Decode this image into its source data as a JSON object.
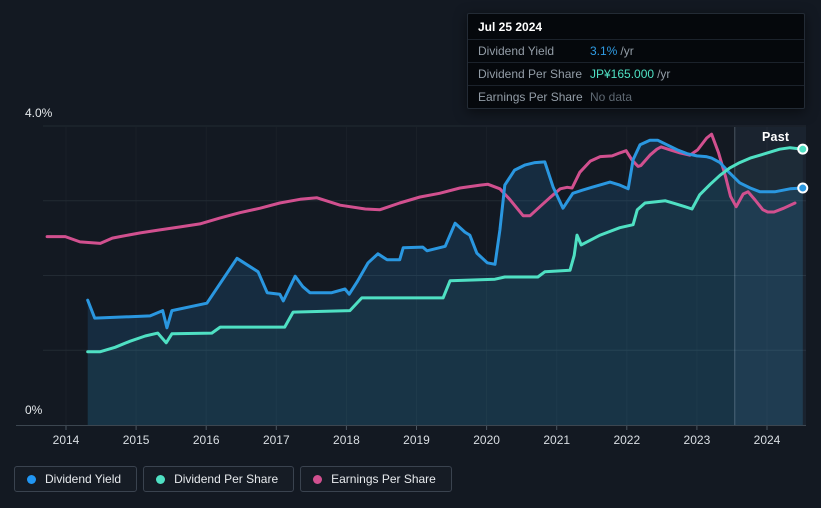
{
  "tooltip": {
    "date": "Jul 25 2024",
    "rows": [
      {
        "label": "Dividend Yield",
        "value": "3.1%",
        "suffix": "/yr",
        "color": "#2f9ce4"
      },
      {
        "label": "Dividend Per Share",
        "value": "JP¥165.000",
        "suffix": "/yr",
        "color": "#4fe0c3"
      },
      {
        "label": "Earnings Per Share",
        "value": "No data",
        "suffix": "",
        "color": "#5e6872"
      }
    ]
  },
  "chart": {
    "past_label": "Past",
    "y_axis": {
      "top_label": "4.0%",
      "bottom_label": "0%"
    }
  },
  "legend": {
    "items": [
      {
        "label": "Dividend Yield",
        "color": "#2196f3"
      },
      {
        "label": "Dividend Per Share",
        "color": "#4fe0c3"
      },
      {
        "label": "Earnings Per Share",
        "color": "#d1508f"
      }
    ]
  },
  "chart_data": {
    "type": "line",
    "title": "Dividend history",
    "ylabel": "%",
    "ylim": [
      0,
      4.0
    ],
    "y_gridlines_pct": [
      1,
      2,
      3,
      4
    ],
    "x_ticks": [
      2014,
      2015,
      2016,
      2017,
      2018,
      2019,
      2020,
      2021,
      2022,
      2023,
      2024
    ],
    "past_start": 2023.54,
    "legend_position": "bottom-left",
    "note": "values are in % of the left axis; Dividend Per Share ends at JP¥165.000/yr, Dividend Yield at 3.1%/yr (Jul 25 2024)",
    "series": [
      {
        "name": "Dividend Yield",
        "color": "#2a97e0",
        "area_alpha": 0.16,
        "end_dot": true,
        "points": [
          [
            2014.31,
            1.67
          ],
          [
            2014.41,
            1.43
          ],
          [
            2015.2,
            1.46
          ],
          [
            2015.38,
            1.53
          ],
          [
            2015.44,
            1.3
          ],
          [
            2015.51,
            1.53
          ],
          [
            2016.01,
            1.63
          ],
          [
            2016.44,
            2.23
          ],
          [
            2016.74,
            2.05
          ],
          [
            2016.87,
            1.77
          ],
          [
            2017.05,
            1.75
          ],
          [
            2017.1,
            1.66
          ],
          [
            2017.27,
            1.99
          ],
          [
            2017.38,
            1.85
          ],
          [
            2017.48,
            1.77
          ],
          [
            2017.79,
            1.77
          ],
          [
            2017.98,
            1.82
          ],
          [
            2018.04,
            1.75
          ],
          [
            2018.15,
            1.91
          ],
          [
            2018.31,
            2.17
          ],
          [
            2018.45,
            2.29
          ],
          [
            2018.58,
            2.21
          ],
          [
            2018.76,
            2.21
          ],
          [
            2018.81,
            2.37
          ],
          [
            2019.09,
            2.38
          ],
          [
            2019.15,
            2.33
          ],
          [
            2019.41,
            2.39
          ],
          [
            2019.55,
            2.7
          ],
          [
            2019.69,
            2.58
          ],
          [
            2019.76,
            2.54
          ],
          [
            2019.86,
            2.3
          ],
          [
            2020.01,
            2.17
          ],
          [
            2020.12,
            2.15
          ],
          [
            2020.19,
            2.61
          ],
          [
            2020.26,
            3.21
          ],
          [
            2020.4,
            3.41
          ],
          [
            2020.55,
            3.48
          ],
          [
            2020.69,
            3.51
          ],
          [
            2020.83,
            3.52
          ],
          [
            2020.95,
            3.18
          ],
          [
            2021.09,
            2.9
          ],
          [
            2021.23,
            3.1
          ],
          [
            2021.36,
            3.14
          ],
          [
            2021.5,
            3.18
          ],
          [
            2021.65,
            3.22
          ],
          [
            2021.76,
            3.25
          ],
          [
            2021.9,
            3.21
          ],
          [
            2022.02,
            3.16
          ],
          [
            2022.09,
            3.55
          ],
          [
            2022.19,
            3.75
          ],
          [
            2022.33,
            3.81
          ],
          [
            2022.44,
            3.81
          ],
          [
            2022.57,
            3.75
          ],
          [
            2022.72,
            3.68
          ],
          [
            2022.86,
            3.63
          ],
          [
            2023.0,
            3.6
          ],
          [
            2023.13,
            3.59
          ],
          [
            2023.21,
            3.57
          ],
          [
            2023.33,
            3.51
          ],
          [
            2023.47,
            3.37
          ],
          [
            2023.61,
            3.24
          ],
          [
            2023.76,
            3.17
          ],
          [
            2023.9,
            3.12
          ],
          [
            2024.11,
            3.12
          ],
          [
            2024.33,
            3.16
          ],
          [
            2024.51,
            3.17
          ]
        ]
      },
      {
        "name": "Dividend Per Share",
        "color": "#4fe0c3",
        "area_alpha": 0.05,
        "end_dot": true,
        "points": [
          [
            2014.31,
            0.98
          ],
          [
            2014.49,
            0.98
          ],
          [
            2014.7,
            1.04
          ],
          [
            2014.91,
            1.12
          ],
          [
            2015.13,
            1.19
          ],
          [
            2015.31,
            1.23
          ],
          [
            2015.43,
            1.1
          ],
          [
            2015.51,
            1.22
          ],
          [
            2016.08,
            1.23
          ],
          [
            2016.2,
            1.31
          ],
          [
            2017.12,
            1.31
          ],
          [
            2017.24,
            1.51
          ],
          [
            2018.05,
            1.53
          ],
          [
            2018.22,
            1.7
          ],
          [
            2019.38,
            1.7
          ],
          [
            2019.48,
            1.93
          ],
          [
            2020.12,
            1.95
          ],
          [
            2020.26,
            1.98
          ],
          [
            2020.73,
            1.98
          ],
          [
            2020.83,
            2.05
          ],
          [
            2021.19,
            2.07
          ],
          [
            2021.25,
            2.27
          ],
          [
            2021.29,
            2.54
          ],
          [
            2021.35,
            2.41
          ],
          [
            2021.62,
            2.54
          ],
          [
            2021.9,
            2.64
          ],
          [
            2022.09,
            2.68
          ],
          [
            2022.15,
            2.88
          ],
          [
            2022.26,
            2.97
          ],
          [
            2022.55,
            3.0
          ],
          [
            2022.69,
            2.96
          ],
          [
            2022.83,
            2.92
          ],
          [
            2022.93,
            2.89
          ],
          [
            2023.04,
            3.08
          ],
          [
            2023.19,
            3.22
          ],
          [
            2023.33,
            3.34
          ],
          [
            2023.47,
            3.44
          ],
          [
            2023.61,
            3.51
          ],
          [
            2023.76,
            3.57
          ],
          [
            2023.9,
            3.61
          ],
          [
            2024.04,
            3.65
          ],
          [
            2024.18,
            3.69
          ],
          [
            2024.33,
            3.71
          ],
          [
            2024.51,
            3.69
          ]
        ]
      },
      {
        "name": "Earnings Per Share",
        "color": "#d1508f",
        "area_alpha": 0,
        "end_dot": false,
        "points": [
          [
            2013.73,
            2.52
          ],
          [
            2013.99,
            2.52
          ],
          [
            2014.2,
            2.45
          ],
          [
            2014.49,
            2.43
          ],
          [
            2014.66,
            2.5
          ],
          [
            2014.77,
            2.52
          ],
          [
            2015.06,
            2.57
          ],
          [
            2015.34,
            2.61
          ],
          [
            2015.63,
            2.65
          ],
          [
            2015.91,
            2.69
          ],
          [
            2016.2,
            2.77
          ],
          [
            2016.48,
            2.84
          ],
          [
            2016.77,
            2.9
          ],
          [
            2017.05,
            2.97
          ],
          [
            2017.34,
            3.02
          ],
          [
            2017.58,
            3.04
          ],
          [
            2017.91,
            2.94
          ],
          [
            2018.27,
            2.89
          ],
          [
            2018.48,
            2.88
          ],
          [
            2018.76,
            2.97
          ],
          [
            2019.05,
            3.05
          ],
          [
            2019.33,
            3.1
          ],
          [
            2019.62,
            3.17
          ],
          [
            2019.91,
            3.21
          ],
          [
            2020.02,
            3.22
          ],
          [
            2020.19,
            3.16
          ],
          [
            2020.33,
            3.02
          ],
          [
            2020.52,
            2.8
          ],
          [
            2020.62,
            2.8
          ],
          [
            2020.76,
            2.92
          ],
          [
            2020.9,
            3.04
          ],
          [
            2021.05,
            3.16
          ],
          [
            2021.15,
            3.18
          ],
          [
            2021.22,
            3.17
          ],
          [
            2021.33,
            3.38
          ],
          [
            2021.48,
            3.53
          ],
          [
            2021.62,
            3.59
          ],
          [
            2021.79,
            3.6
          ],
          [
            2021.9,
            3.64
          ],
          [
            2021.99,
            3.67
          ],
          [
            2022.07,
            3.55
          ],
          [
            2022.16,
            3.46
          ],
          [
            2022.2,
            3.47
          ],
          [
            2022.33,
            3.61
          ],
          [
            2022.43,
            3.69
          ],
          [
            2022.49,
            3.72
          ],
          [
            2022.62,
            3.68
          ],
          [
            2022.76,
            3.64
          ],
          [
            2022.9,
            3.61
          ],
          [
            2023.01,
            3.68
          ],
          [
            2023.14,
            3.84
          ],
          [
            2023.21,
            3.89
          ],
          [
            2023.31,
            3.64
          ],
          [
            2023.41,
            3.32
          ],
          [
            2023.48,
            3.06
          ],
          [
            2023.56,
            2.92
          ],
          [
            2023.66,
            3.09
          ],
          [
            2023.73,
            3.12
          ],
          [
            2023.83,
            3.01
          ],
          [
            2023.94,
            2.88
          ],
          [
            2024.01,
            2.85
          ],
          [
            2024.1,
            2.85
          ],
          [
            2024.24,
            2.9
          ],
          [
            2024.4,
            2.97
          ]
        ]
      }
    ]
  }
}
